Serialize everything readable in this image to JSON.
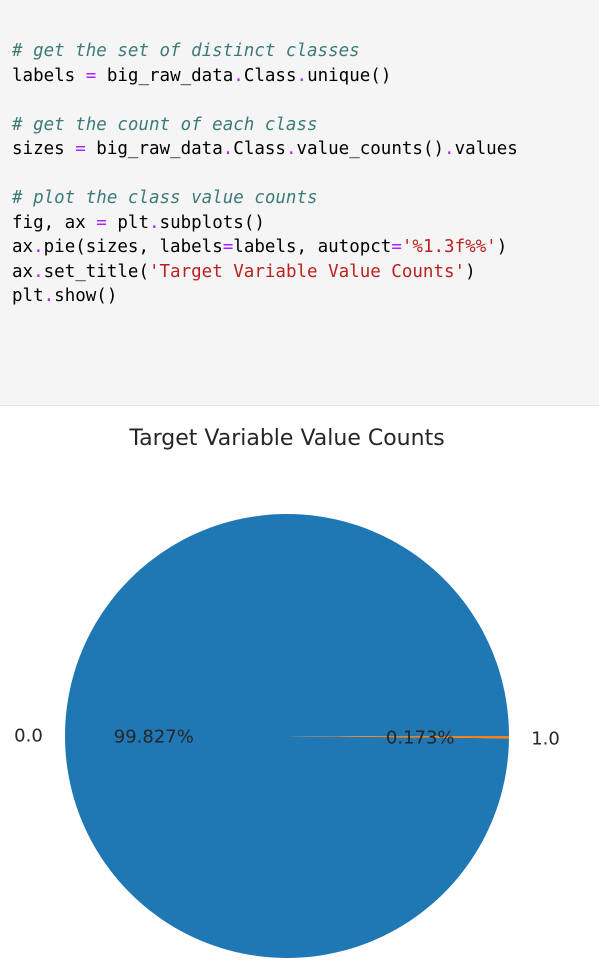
{
  "code_cell": {
    "lines": [
      [
        {
          "t": "# get the set of distinct classes",
          "c": "comment"
        }
      ],
      [
        {
          "t": "labels ",
          "c": "default"
        },
        {
          "t": "=",
          "c": "op"
        },
        {
          "t": " big_raw_data",
          "c": "default"
        },
        {
          "t": ".",
          "c": "op"
        },
        {
          "t": "Class",
          "c": "default"
        },
        {
          "t": ".",
          "c": "op"
        },
        {
          "t": "unique()",
          "c": "default"
        }
      ],
      [],
      [
        {
          "t": "# get the count of each class",
          "c": "comment"
        }
      ],
      [
        {
          "t": "sizes ",
          "c": "default"
        },
        {
          "t": "=",
          "c": "op"
        },
        {
          "t": " big_raw_data",
          "c": "default"
        },
        {
          "t": ".",
          "c": "op"
        },
        {
          "t": "Class",
          "c": "default"
        },
        {
          "t": ".",
          "c": "op"
        },
        {
          "t": "value_counts()",
          "c": "default"
        },
        {
          "t": ".",
          "c": "op"
        },
        {
          "t": "values",
          "c": "default"
        }
      ],
      [],
      [
        {
          "t": "# plot the class value counts",
          "c": "comment"
        }
      ],
      [
        {
          "t": "fig, ax ",
          "c": "default"
        },
        {
          "t": "=",
          "c": "op"
        },
        {
          "t": " plt",
          "c": "default"
        },
        {
          "t": ".",
          "c": "op"
        },
        {
          "t": "subplots()",
          "c": "default"
        }
      ],
      [
        {
          "t": "ax",
          "c": "default"
        },
        {
          "t": ".",
          "c": "op"
        },
        {
          "t": "pie(sizes, labels",
          "c": "default"
        },
        {
          "t": "=",
          "c": "op"
        },
        {
          "t": "labels, autopct",
          "c": "default"
        },
        {
          "t": "=",
          "c": "op"
        },
        {
          "t": "'%1.3f%%'",
          "c": "str"
        },
        {
          "t": ")",
          "c": "default"
        }
      ],
      [
        {
          "t": "ax",
          "c": "default"
        },
        {
          "t": ".",
          "c": "op"
        },
        {
          "t": "set_title(",
          "c": "default"
        },
        {
          "t": "'Target Variable Value Counts'",
          "c": "str"
        },
        {
          "t": ")",
          "c": "default"
        }
      ],
      [
        {
          "t": "plt",
          "c": "default"
        },
        {
          "t": ".",
          "c": "op"
        },
        {
          "t": "show()",
          "c": "default"
        }
      ]
    ]
  },
  "chart_data": {
    "type": "pie",
    "title": "Target Variable Value Counts",
    "labels": [
      "0.0",
      "1.0"
    ],
    "values": [
      99.827,
      0.173
    ],
    "autopct_labels": [
      "99.827%",
      "0.173%"
    ],
    "colors": [
      "#1f77b4",
      "#ff7f0e"
    ]
  }
}
